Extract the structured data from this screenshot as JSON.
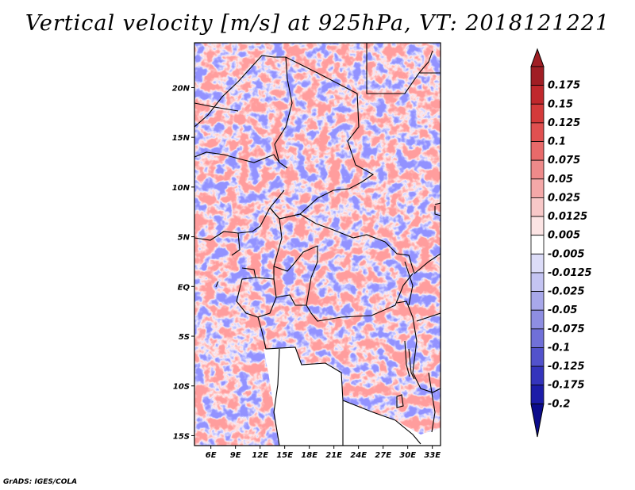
{
  "title": "Vertical velocity [m/s] at 925hPa, VT: 2018121221",
  "credit": "GrADS: IGES/COLA",
  "map": {
    "lon_range": [
      4,
      34
    ],
    "lat_range": [
      -16,
      24.5
    ],
    "lon_ticks": [
      "6E",
      "9E",
      "12E",
      "15E",
      "18E",
      "21E",
      "24E",
      "27E",
      "30E",
      "33E"
    ],
    "lat_ticks": [
      "20N",
      "15N",
      "10N",
      "5N",
      "EQ",
      "5S",
      "10S",
      "15S"
    ],
    "field": "vertical velocity",
    "level": "925hPa",
    "units": "m/s"
  },
  "colorbar": {
    "labels": [
      "0.175",
      "0.15",
      "0.125",
      "0.1",
      "0.075",
      "0.05",
      "0.025",
      "0.0125",
      "0.005",
      "-0.005",
      "-0.0125",
      "-0.025",
      "-0.05",
      "-0.075",
      "-0.1",
      "-0.125",
      "-0.175",
      "-0.2"
    ],
    "colors": [
      "#a01e24",
      "#c0282c",
      "#d43a3a",
      "#e05050",
      "#e86a6a",
      "#ee8a8a",
      "#f4a8a8",
      "#f8c8c8",
      "#fce4e4",
      "#ffffff",
      "#dcdcf8",
      "#c4c4f2",
      "#a8a8ea",
      "#8e8ee2",
      "#7070d8",
      "#5252cc",
      "#3434bc",
      "#1c1ca8",
      "#0c0c8c"
    ]
  }
}
